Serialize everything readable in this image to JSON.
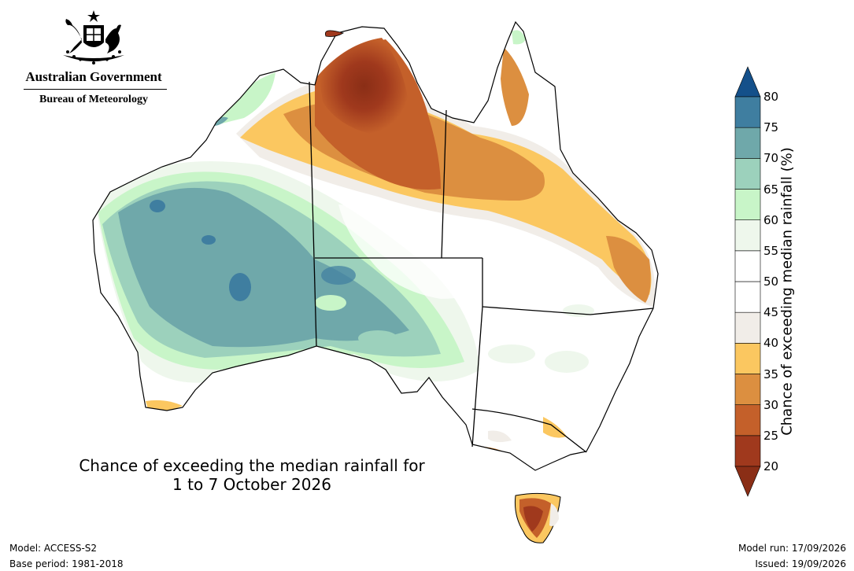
{
  "logo": {
    "government": "Australian Government",
    "bureau": "Bureau of Meteorology",
    "icon": "coat-of-arms-icon"
  },
  "map": {
    "title_line1": "Chance of exceeding the median rainfall for",
    "title_line2": "1 to 7 October 2026"
  },
  "legend": {
    "title": "Chance of exceeding median rainfall (%)",
    "ticks": [
      "20",
      "25",
      "30",
      "35",
      "40",
      "45",
      "50",
      "55",
      "60",
      "65",
      "70",
      "75",
      "80"
    ],
    "colors": [
      "#a0391d",
      "#c4602a",
      "#dc8f40",
      "#fbc760",
      "#f1ede8",
      "#ffffff",
      "#ffffff",
      "#eef7ec",
      "#c8f5c8",
      "#9cd1bc",
      "#6fa8aa",
      "#3f7ea0",
      "#1e5a90"
    ],
    "low_arrow_color": "#8a2e16",
    "high_arrow_color": "#14508a"
  },
  "footer": {
    "model": "Model: ACCESS-S2",
    "base_period": "Base period: 1981-2018",
    "model_run": "Model run: 17/09/2026",
    "issued": "Issued: 19/09/2026"
  }
}
